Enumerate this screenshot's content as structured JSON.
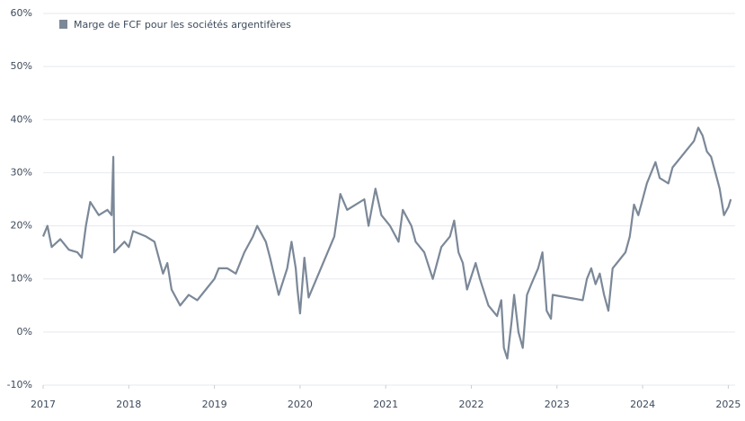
{
  "chart_data": {
    "type": "line",
    "series": [
      {
        "name": "Marge de FCF pour les sociétés argentifères",
        "color": "#7b8898",
        "x": [
          2017.0,
          2017.05,
          2017.1,
          2017.2,
          2017.3,
          2017.4,
          2017.45,
          2017.5,
          2017.55,
          2017.65,
          2017.75,
          2017.8,
          2017.82,
          2017.83,
          2017.95,
          2018.0,
          2018.05,
          2018.2,
          2018.3,
          2018.35,
          2018.4,
          2018.45,
          2018.5,
          2018.6,
          2018.7,
          2018.8,
          2018.9,
          2019.0,
          2019.05,
          2019.15,
          2019.25,
          2019.35,
          2019.45,
          2019.5,
          2019.6,
          2019.65,
          2019.75,
          2019.85,
          2019.9,
          2019.95,
          2019.97,
          2020.0,
          2020.05,
          2020.1,
          2020.4,
          2020.47,
          2020.55,
          2020.65,
          2020.75,
          2020.8,
          2020.88,
          2020.95,
          2021.05,
          2021.15,
          2021.2,
          2021.3,
          2021.35,
          2021.45,
          2021.55,
          2021.65,
          2021.75,
          2021.8,
          2021.85,
          2021.9,
          2021.95,
          2022.05,
          2022.1,
          2022.2,
          2022.3,
          2022.35,
          2022.38,
          2022.42,
          2022.47,
          2022.5,
          2022.55,
          2022.6,
          2022.65,
          2022.7,
          2022.78,
          2022.83,
          2022.88,
          2022.93,
          2022.95,
          2023.3,
          2023.35,
          2023.4,
          2023.45,
          2023.5,
          2023.55,
          2023.6,
          2023.65,
          2023.7,
          2023.8,
          2023.85,
          2023.9,
          2023.95,
          2024.0,
          2024.05,
          2024.1,
          2024.15,
          2024.2,
          2024.3,
          2024.35,
          2024.45,
          2024.5,
          2024.55,
          2024.6,
          2024.65,
          2024.7,
          2024.75,
          2024.8,
          2024.85,
          2024.9,
          2024.95,
          2025.0,
          2025.03
        ],
        "values": [
          18,
          20,
          16,
          17.5,
          15.5,
          15,
          14,
          20,
          24.5,
          22,
          23,
          22,
          33,
          15,
          17,
          16,
          19,
          18,
          17,
          14,
          11,
          13,
          8,
          5,
          7,
          6,
          8,
          10,
          12,
          12,
          11,
          15,
          18,
          20,
          17,
          14,
          7,
          12,
          17,
          12,
          8,
          3.5,
          14,
          6.5,
          18,
          26,
          23,
          24,
          25,
          20,
          27,
          22,
          20,
          17,
          23,
          20,
          17,
          15,
          10,
          16,
          18,
          21,
          15,
          13,
          8,
          13,
          10,
          5,
          3,
          6,
          -3,
          -5,
          2,
          7,
          0,
          -3,
          7,
          9,
          12,
          15,
          4,
          2.5,
          7,
          6,
          10,
          12,
          9,
          11,
          7,
          4,
          12,
          13,
          15,
          18,
          24,
          22,
          25,
          28,
          30,
          32,
          29,
          28,
          31,
          33,
          34,
          35,
          36,
          38.5,
          37,
          34,
          33,
          30,
          27,
          22,
          23.5,
          25
        ]
      }
    ],
    "xlim": [
      2017,
      2025.08
    ],
    "xticks": [
      2017,
      2018,
      2019,
      2020,
      2021,
      2022,
      2023,
      2024,
      2025
    ],
    "ylim": [
      -10,
      60
    ],
    "yticks": [
      {
        "value": -10,
        "label": "-10%"
      },
      {
        "value": 0,
        "label": "0%"
      },
      {
        "value": 10,
        "label": "10%"
      },
      {
        "value": 20,
        "label": "20%"
      },
      {
        "value": 30,
        "label": "30%"
      },
      {
        "value": 40,
        "label": "40%"
      },
      {
        "value": 50,
        "label": "50%"
      },
      {
        "value": 60,
        "label": "60%"
      }
    ],
    "grid": true
  }
}
